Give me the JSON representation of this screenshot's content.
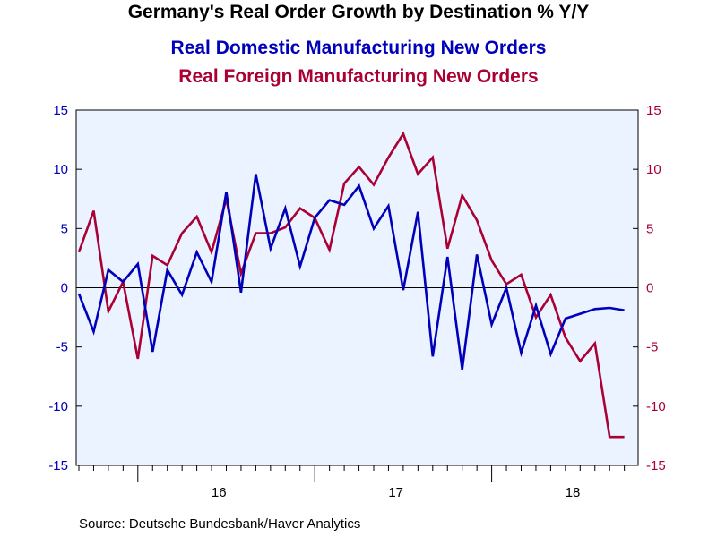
{
  "chart_data": {
    "type": "line",
    "title": "Germany's Real Order Growth by Destination % Y/Y",
    "source": "Source:  Deutsche Bundesbank/Haver Analytics",
    "x_tick_labels": [
      "16",
      "17",
      "18"
    ],
    "ylim_left": [
      -15,
      15
    ],
    "ylim_right": [
      -15,
      15
    ],
    "y_ticks": [
      -15,
      -10,
      -5,
      0,
      5,
      10,
      15
    ],
    "y_tick_labels": [
      "-15",
      "-10",
      "-5",
      "0",
      "5",
      "10",
      "15"
    ],
    "x_year_index": [
      4,
      16,
      28
    ],
    "x": [
      "Sep-15",
      "Oct-15",
      "Nov-15",
      "Dec-15",
      "Jan-16",
      "Feb-16",
      "Mar-16",
      "Apr-16",
      "May-16",
      "Jun-16",
      "Jul-16",
      "Aug-16",
      "Sep-16",
      "Oct-16",
      "Nov-16",
      "Dec-16",
      "Jan-17",
      "Feb-17",
      "Mar-17",
      "Apr-17",
      "May-17",
      "Jun-17",
      "Jul-17",
      "Aug-17",
      "Sep-17",
      "Oct-17",
      "Nov-17",
      "Dec-17",
      "Jan-18",
      "Feb-18",
      "Mar-18",
      "Apr-18",
      "May-18",
      "Jun-18",
      "Jul-18",
      "Aug-18",
      "Sep-18",
      "Oct-18"
    ],
    "series": [
      {
        "name": "Real Domestic Manufacturing New Orders",
        "color": "#0000bb",
        "axis": "left",
        "values": [
          -0.5,
          -3.7,
          1.5,
          0.5,
          2.0,
          -5.4,
          1.5,
          -0.6,
          3.0,
          0.5,
          8.1,
          -0.4,
          9.6,
          3.3,
          6.7,
          1.8,
          5.9,
          7.4,
          7.0,
          8.6,
          5.0,
          6.9,
          -0.2,
          6.4,
          -5.8,
          2.6,
          -6.9,
          2.8,
          -3.1,
          0.0,
          -5.5,
          -1.5,
          -5.6,
          -2.6,
          -2.2,
          -1.8,
          -1.7,
          -1.9
        ]
      },
      {
        "name": "Real Foreign Manufacturing New Orders",
        "color": "#aa0033",
        "axis": "right",
        "values": [
          3.0,
          6.5,
          -2.0,
          0.5,
          -6.0,
          2.7,
          1.9,
          4.6,
          6.0,
          3.0,
          7.5,
          1.2,
          4.6,
          4.6,
          5.1,
          6.7,
          5.9,
          3.2,
          8.8,
          10.2,
          8.7,
          11.0,
          13.0,
          9.6,
          11.0,
          3.3,
          7.8,
          5.7,
          2.3,
          0.3,
          1.1,
          -2.5,
          -0.6,
          -4.2,
          -6.2,
          -4.7,
          -12.6,
          -12.6
        ]
      }
    ]
  },
  "colors": {
    "plot_background": "#eaf3ff",
    "domestic": "#0000bb",
    "foreign": "#aa0033",
    "left_axis": "#0000bb",
    "right_axis": "#aa0033"
  }
}
